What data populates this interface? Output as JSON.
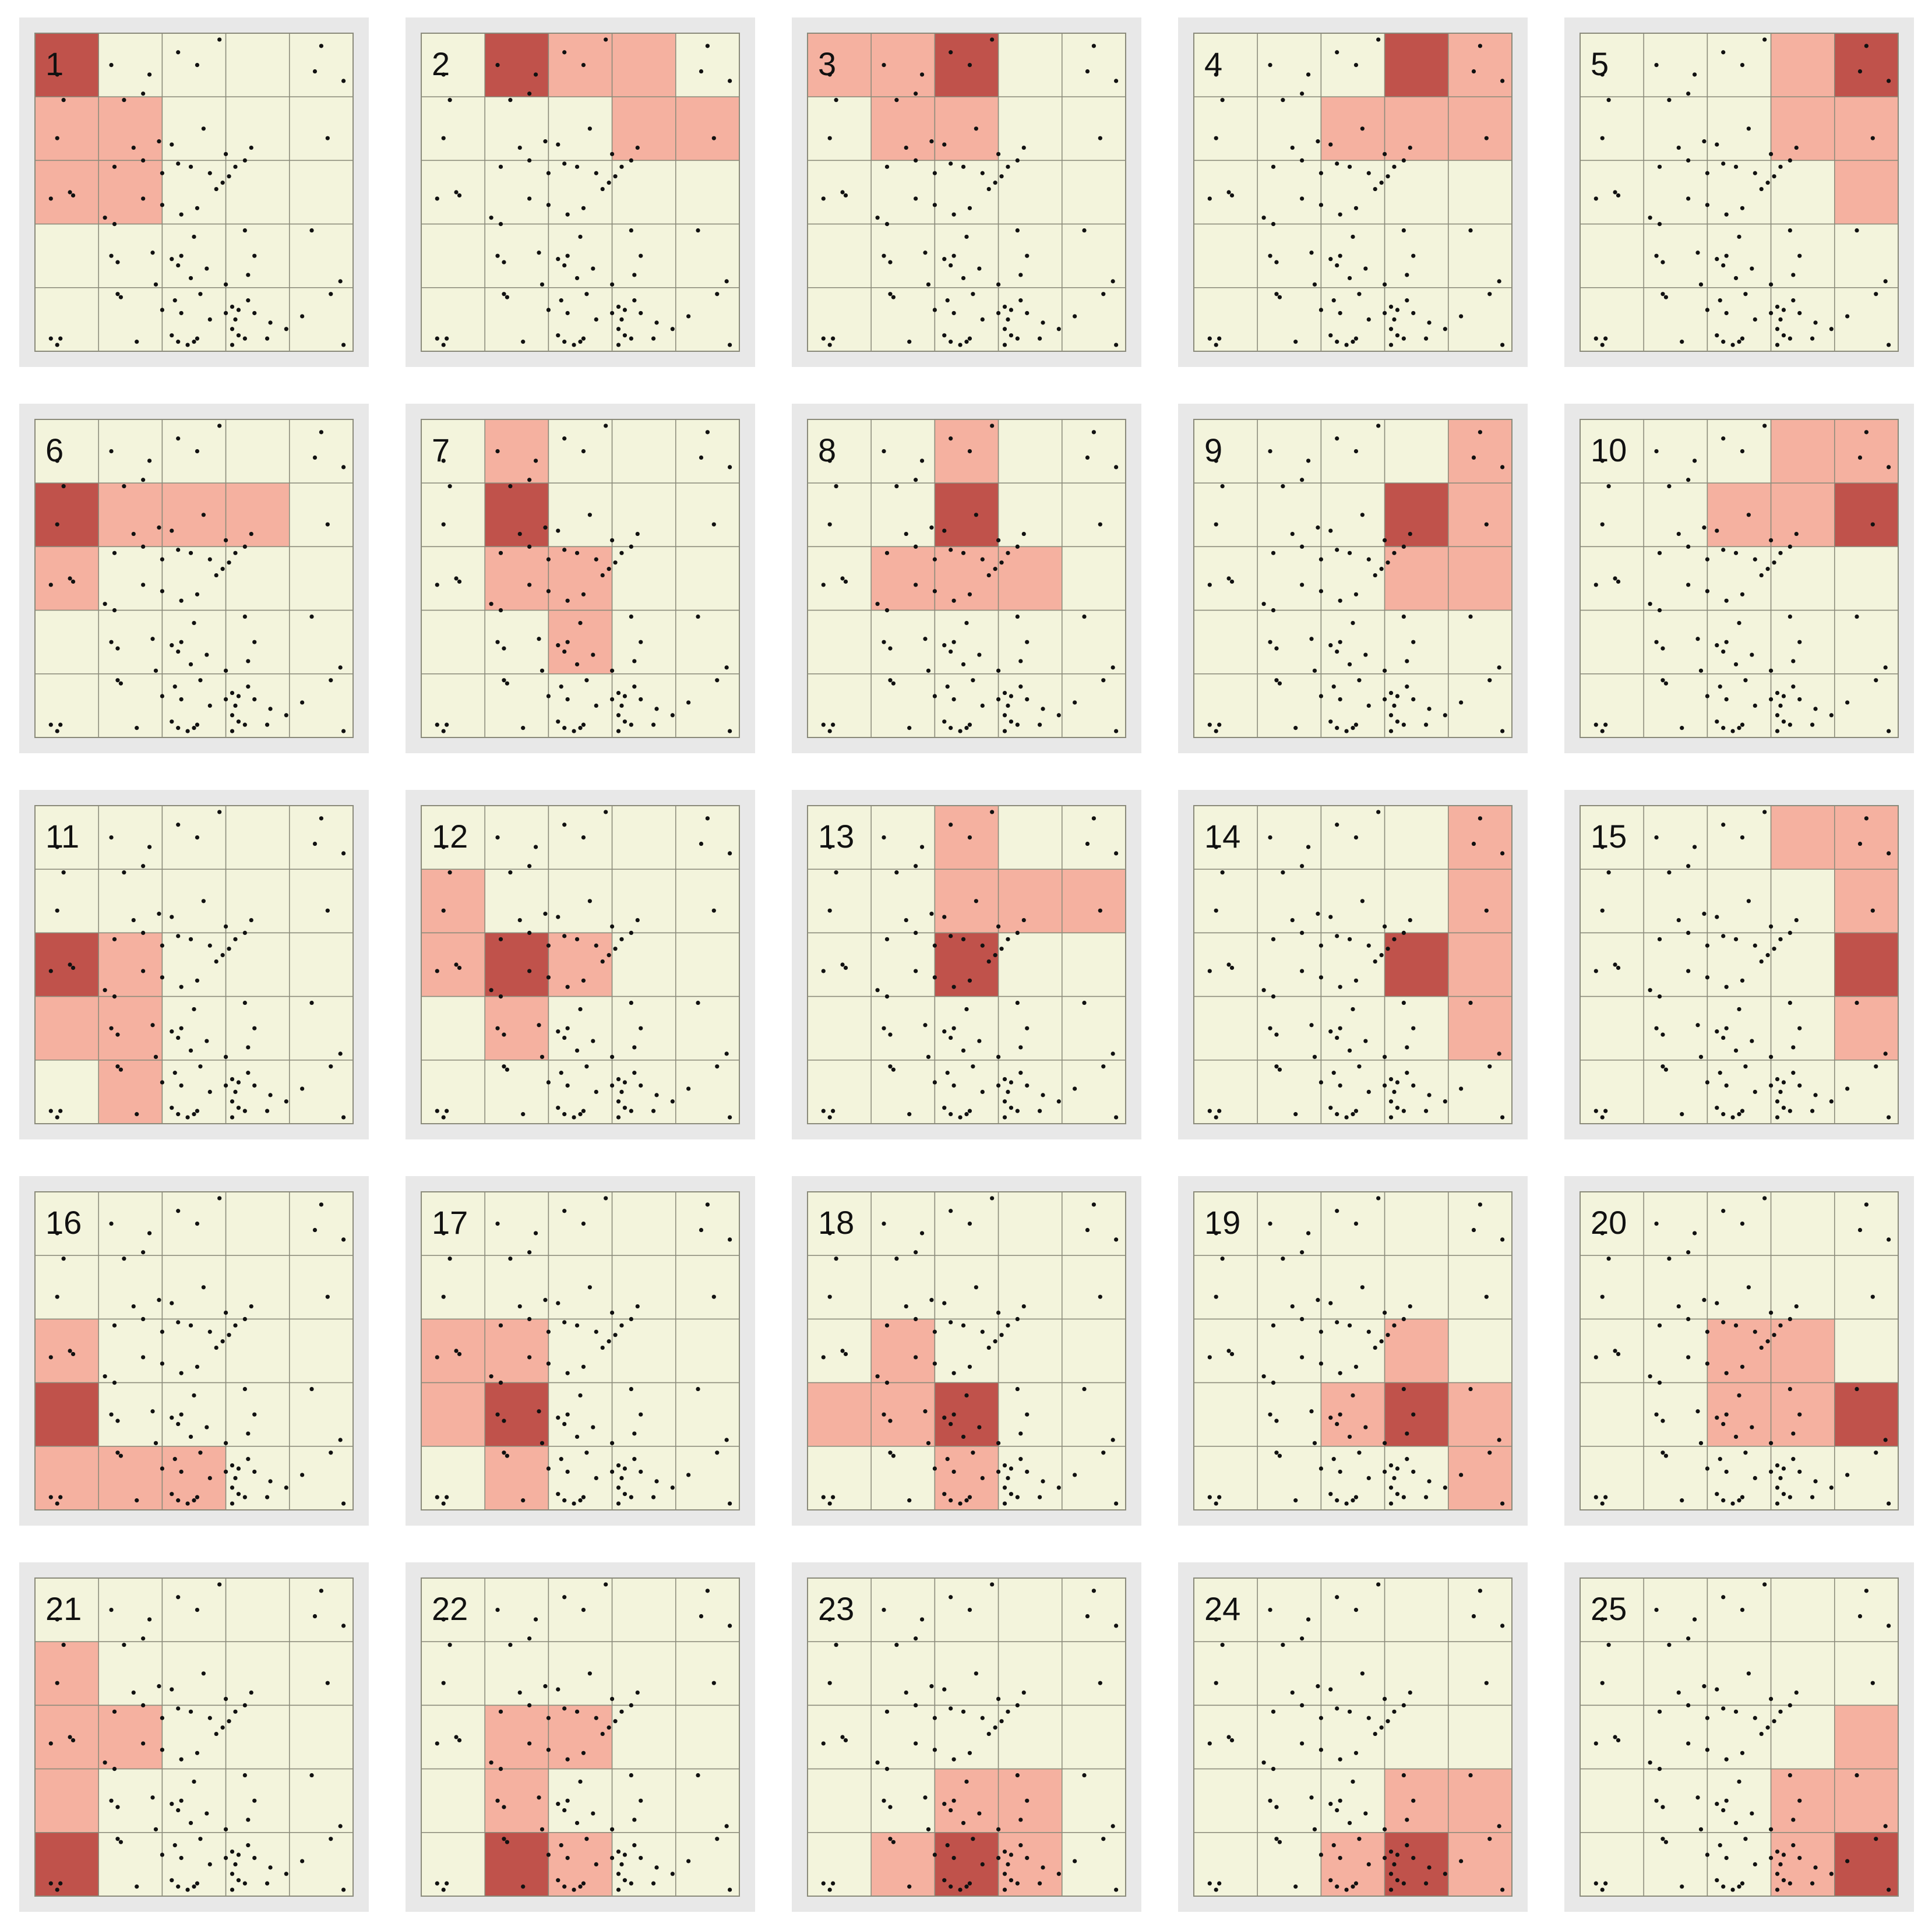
{
  "figure": {
    "grid_rows": 5,
    "grid_cols": 5,
    "colors": {
      "cell_background": "#f3f4dc",
      "neighbor_cell": "#f5b1a0",
      "focal_cell": "#c0524b",
      "grid_line": "#8a8a7a",
      "frame_background": "#e8e8e8",
      "point": "#111111",
      "label_text": "#111111"
    },
    "points": [
      [
        0.07,
        0.13
      ],
      [
        0.09,
        0.21
      ],
      [
        0.07,
        0.33
      ],
      [
        0.24,
        0.1
      ],
      [
        0.28,
        0.21
      ],
      [
        0.34,
        0.19
      ],
      [
        0.36,
        0.13
      ],
      [
        0.31,
        0.36
      ],
      [
        0.45,
        0.06
      ],
      [
        0.51,
        0.1
      ],
      [
        0.58,
        0.02
      ],
      [
        0.05,
        0.52
      ],
      [
        0.11,
        0.5
      ],
      [
        0.12,
        0.51
      ],
      [
        0.25,
        0.42
      ],
      [
        0.34,
        0.4
      ],
      [
        0.4,
        0.44
      ],
      [
        0.45,
        0.41
      ],
      [
        0.49,
        0.42
      ],
      [
        0.39,
        0.34
      ],
      [
        0.43,
        0.35
      ],
      [
        0.53,
        0.3
      ],
      [
        0.22,
        0.58
      ],
      [
        0.25,
        0.6
      ],
      [
        0.34,
        0.52
      ],
      [
        0.4,
        0.54
      ],
      [
        0.46,
        0.57
      ],
      [
        0.51,
        0.55
      ],
      [
        0.57,
        0.49
      ],
      [
        0.55,
        0.44
      ],
      [
        0.59,
        0.47
      ],
      [
        0.61,
        0.45
      ],
      [
        0.63,
        0.42
      ],
      [
        0.66,
        0.4
      ],
      [
        0.68,
        0.36
      ],
      [
        0.6,
        0.38
      ],
      [
        0.92,
        0.33
      ],
      [
        0.26,
        0.72
      ],
      [
        0.24,
        0.7
      ],
      [
        0.37,
        0.69
      ],
      [
        0.43,
        0.71
      ],
      [
        0.45,
        0.73
      ],
      [
        0.46,
        0.7
      ],
      [
        0.38,
        0.79
      ],
      [
        0.49,
        0.77
      ],
      [
        0.5,
        0.64
      ],
      [
        0.54,
        0.74
      ],
      [
        0.6,
        0.79
      ],
      [
        0.67,
        0.76
      ],
      [
        0.66,
        0.62
      ],
      [
        0.69,
        0.7
      ],
      [
        0.87,
        0.62
      ],
      [
        0.96,
        0.78
      ],
      [
        0.26,
        0.82
      ],
      [
        0.27,
        0.83
      ],
      [
        0.44,
        0.84
      ],
      [
        0.46,
        0.88
      ],
      [
        0.52,
        0.82
      ],
      [
        0.55,
        0.9
      ],
      [
        0.62,
        0.86
      ],
      [
        0.79,
        0.93
      ],
      [
        0.93,
        0.82
      ],
      [
        0.05,
        0.96
      ],
      [
        0.07,
        0.98
      ],
      [
        0.08,
        0.96
      ],
      [
        0.32,
        0.97
      ],
      [
        0.4,
        0.87
      ],
      [
        0.43,
        0.95
      ],
      [
        0.51,
        0.96
      ],
      [
        0.69,
        0.88
      ],
      [
        0.74,
        0.91
      ],
      [
        0.73,
        0.96
      ],
      [
        0.84,
        0.89
      ],
      [
        0.97,
        0.98
      ],
      [
        0.45,
        0.97
      ],
      [
        0.48,
        0.98
      ],
      [
        0.5,
        0.97
      ],
      [
        0.62,
        0.93
      ],
      [
        0.64,
        0.95
      ],
      [
        0.62,
        0.98
      ],
      [
        0.66,
        0.96
      ],
      [
        0.63,
        0.9
      ],
      [
        0.6,
        0.88
      ],
      [
        0.64,
        0.87
      ],
      [
        0.67,
        0.84
      ],
      [
        0.9,
        0.04
      ],
      [
        0.88,
        0.12
      ],
      [
        0.97,
        0.15
      ]
    ],
    "panels": [
      {
        "label": "1",
        "focal": [
          0,
          0
        ],
        "neighbors": [
          [
            1,
            0
          ],
          [
            1,
            1
          ],
          [
            2,
            0
          ],
          [
            2,
            1
          ]
        ]
      },
      {
        "label": "2",
        "focal": [
          0,
          1
        ],
        "neighbors": [
          [
            0,
            2
          ],
          [
            0,
            3
          ],
          [
            1,
            3
          ],
          [
            1,
            4
          ]
        ]
      },
      {
        "label": "3",
        "focal": [
          0,
          2
        ],
        "neighbors": [
          [
            0,
            0
          ],
          [
            0,
            1
          ],
          [
            1,
            1
          ],
          [
            1,
            2
          ]
        ]
      },
      {
        "label": "4",
        "focal": [
          0,
          3
        ],
        "neighbors": [
          [
            0,
            4
          ],
          [
            1,
            2
          ],
          [
            1,
            3
          ],
          [
            1,
            4
          ]
        ]
      },
      {
        "label": "5",
        "focal": [
          0,
          4
        ],
        "neighbors": [
          [
            0,
            3
          ],
          [
            1,
            3
          ],
          [
            1,
            4
          ],
          [
            2,
            4
          ]
        ]
      },
      {
        "label": "6",
        "focal": [
          1,
          0
        ],
        "neighbors": [
          [
            1,
            1
          ],
          [
            1,
            2
          ],
          [
            1,
            3
          ],
          [
            2,
            0
          ]
        ]
      },
      {
        "label": "7",
        "focal": [
          1,
          1
        ],
        "neighbors": [
          [
            0,
            1
          ],
          [
            2,
            1
          ],
          [
            2,
            2
          ],
          [
            3,
            2
          ]
        ]
      },
      {
        "label": "8",
        "focal": [
          1,
          2
        ],
        "neighbors": [
          [
            0,
            2
          ],
          [
            2,
            1
          ],
          [
            2,
            2
          ],
          [
            2,
            3
          ]
        ]
      },
      {
        "label": "9",
        "focal": [
          1,
          3
        ],
        "neighbors": [
          [
            0,
            4
          ],
          [
            1,
            4
          ],
          [
            2,
            3
          ],
          [
            2,
            4
          ]
        ]
      },
      {
        "label": "10",
        "focal": [
          1,
          4
        ],
        "neighbors": [
          [
            0,
            3
          ],
          [
            0,
            4
          ],
          [
            1,
            2
          ],
          [
            1,
            3
          ]
        ]
      },
      {
        "label": "11",
        "focal": [
          2,
          0
        ],
        "neighbors": [
          [
            2,
            1
          ],
          [
            3,
            0
          ],
          [
            3,
            1
          ],
          [
            4,
            1
          ]
        ]
      },
      {
        "label": "12",
        "focal": [
          2,
          1
        ],
        "neighbors": [
          [
            1,
            0
          ],
          [
            2,
            0
          ],
          [
            2,
            2
          ],
          [
            3,
            1
          ]
        ]
      },
      {
        "label": "13",
        "focal": [
          2,
          2
        ],
        "neighbors": [
          [
            0,
            2
          ],
          [
            1,
            2
          ],
          [
            1,
            3
          ],
          [
            1,
            4
          ]
        ]
      },
      {
        "label": "14",
        "focal": [
          2,
          3
        ],
        "neighbors": [
          [
            0,
            4
          ],
          [
            1,
            4
          ],
          [
            2,
            4
          ],
          [
            3,
            4
          ]
        ]
      },
      {
        "label": "15",
        "focal": [
          2,
          4
        ],
        "neighbors": [
          [
            0,
            3
          ],
          [
            0,
            4
          ],
          [
            1,
            4
          ],
          [
            3,
            4
          ]
        ]
      },
      {
        "label": "16",
        "focal": [
          3,
          0
        ],
        "neighbors": [
          [
            2,
            0
          ],
          [
            4,
            0
          ],
          [
            4,
            1
          ],
          [
            4,
            2
          ]
        ]
      },
      {
        "label": "17",
        "focal": [
          3,
          1
        ],
        "neighbors": [
          [
            2,
            0
          ],
          [
            2,
            1
          ],
          [
            3,
            0
          ],
          [
            4,
            1
          ]
        ]
      },
      {
        "label": "18",
        "focal": [
          3,
          2
        ],
        "neighbors": [
          [
            2,
            1
          ],
          [
            3,
            0
          ],
          [
            3,
            1
          ],
          [
            4,
            2
          ]
        ]
      },
      {
        "label": "19",
        "focal": [
          3,
          3
        ],
        "neighbors": [
          [
            2,
            3
          ],
          [
            3,
            2
          ],
          [
            3,
            4
          ],
          [
            4,
            4
          ]
        ]
      },
      {
        "label": "20",
        "focal": [
          3,
          4
        ],
        "neighbors": [
          [
            2,
            2
          ],
          [
            2,
            3
          ],
          [
            3,
            2
          ],
          [
            3,
            3
          ]
        ]
      },
      {
        "label": "21",
        "focal": [
          4,
          0
        ],
        "neighbors": [
          [
            1,
            0
          ],
          [
            2,
            0
          ],
          [
            2,
            1
          ],
          [
            3,
            0
          ]
        ]
      },
      {
        "label": "22",
        "focal": [
          4,
          1
        ],
        "neighbors": [
          [
            2,
            1
          ],
          [
            2,
            2
          ],
          [
            3,
            1
          ],
          [
            4,
            2
          ]
        ]
      },
      {
        "label": "23",
        "focal": [
          4,
          2
        ],
        "neighbors": [
          [
            3,
            2
          ],
          [
            3,
            3
          ],
          [
            4,
            1
          ],
          [
            4,
            3
          ]
        ]
      },
      {
        "label": "24",
        "focal": [
          4,
          3
        ],
        "neighbors": [
          [
            3,
            3
          ],
          [
            3,
            4
          ],
          [
            4,
            2
          ],
          [
            4,
            4
          ]
        ]
      },
      {
        "label": "25",
        "focal": [
          4,
          4
        ],
        "neighbors": [
          [
            2,
            4
          ],
          [
            3,
            3
          ],
          [
            3,
            4
          ],
          [
            4,
            3
          ]
        ]
      }
    ]
  }
}
